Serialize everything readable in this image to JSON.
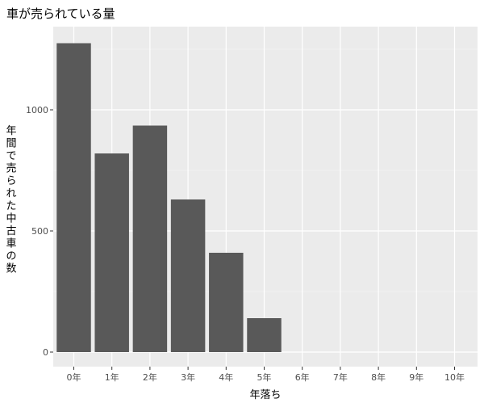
{
  "chart_data": {
    "type": "bar",
    "title": "車が売られている量",
    "xlabel": "年落ち",
    "ylabel": "年間で売られた中古車の数",
    "categories": [
      "0年",
      "1年",
      "2年",
      "3年",
      "4年",
      "5年",
      "6年",
      "7年",
      "8年",
      "9年",
      "10年"
    ],
    "values": [
      1275,
      820,
      935,
      630,
      410,
      140,
      0,
      0,
      0,
      0,
      0
    ],
    "ylim": [
      0,
      1330
    ],
    "yticks": [
      0,
      500,
      1000
    ],
    "grid": true,
    "legend": "none",
    "colors": {
      "bar": "#595959",
      "panel": "#ebebeb",
      "grid_major": "#ffffff",
      "text": "#000000",
      "tick_text": "#4d4d4d"
    }
  }
}
